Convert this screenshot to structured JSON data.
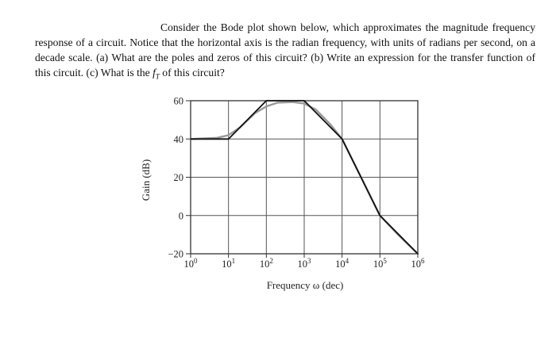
{
  "problem": {
    "line1": "Consider the Bode plot shown below, which approximates the magnitude",
    "line2": "frequency response of a circuit. Notice that the horizontal axis is the radian frequency, with units of",
    "line3": "radians per second, on a decade scale. (a) What are the poles and zeros of this circuit? (b) Write an",
    "line4_pre": "expression for the transfer function of this circuit. (c) What is the ",
    "line4_sym": "f",
    "line4_sub": "T",
    "line4_post": " of this circuit?"
  },
  "chart_data": {
    "type": "line",
    "xlabel": "Frequency ω (dec)",
    "ylabel": "Gain (dB)",
    "xscale": "log",
    "xlim": [
      1,
      1000000
    ],
    "ylim": [
      -20,
      60
    ],
    "x_ticks": [
      {
        "value": 1,
        "base": "10",
        "exp": "0"
      },
      {
        "value": 10,
        "base": "10",
        "exp": "1"
      },
      {
        "value": 100,
        "base": "10",
        "exp": "2"
      },
      {
        "value": 1000,
        "base": "10",
        "exp": "3"
      },
      {
        "value": 10000,
        "base": "10",
        "exp": "4"
      },
      {
        "value": 100000,
        "base": "10",
        "exp": "5"
      },
      {
        "value": 1000000,
        "base": "10",
        "exp": "6"
      }
    ],
    "y_ticks": [
      60,
      40,
      20,
      0,
      -20
    ],
    "grid": true,
    "series": [
      {
        "style": "asymptotic",
        "color": "#111111",
        "x": [
          1,
          10,
          100,
          1000,
          10000,
          100000,
          1000000
        ],
        "y": [
          40,
          40,
          60,
          60,
          40,
          0,
          -20
        ]
      },
      {
        "style": "actual",
        "color": "#9a9a9a",
        "x": [
          1,
          5,
          10,
          20,
          50,
          100,
          200,
          500,
          1000,
          2000,
          5000,
          10000,
          30000,
          100000,
          300000,
          1000000
        ],
        "y": [
          40,
          40.6,
          42,
          46,
          53.5,
          57,
          59,
          59.3,
          58.5,
          55.5,
          47.5,
          40,
          21,
          0,
          -10,
          -20
        ]
      }
    ]
  }
}
